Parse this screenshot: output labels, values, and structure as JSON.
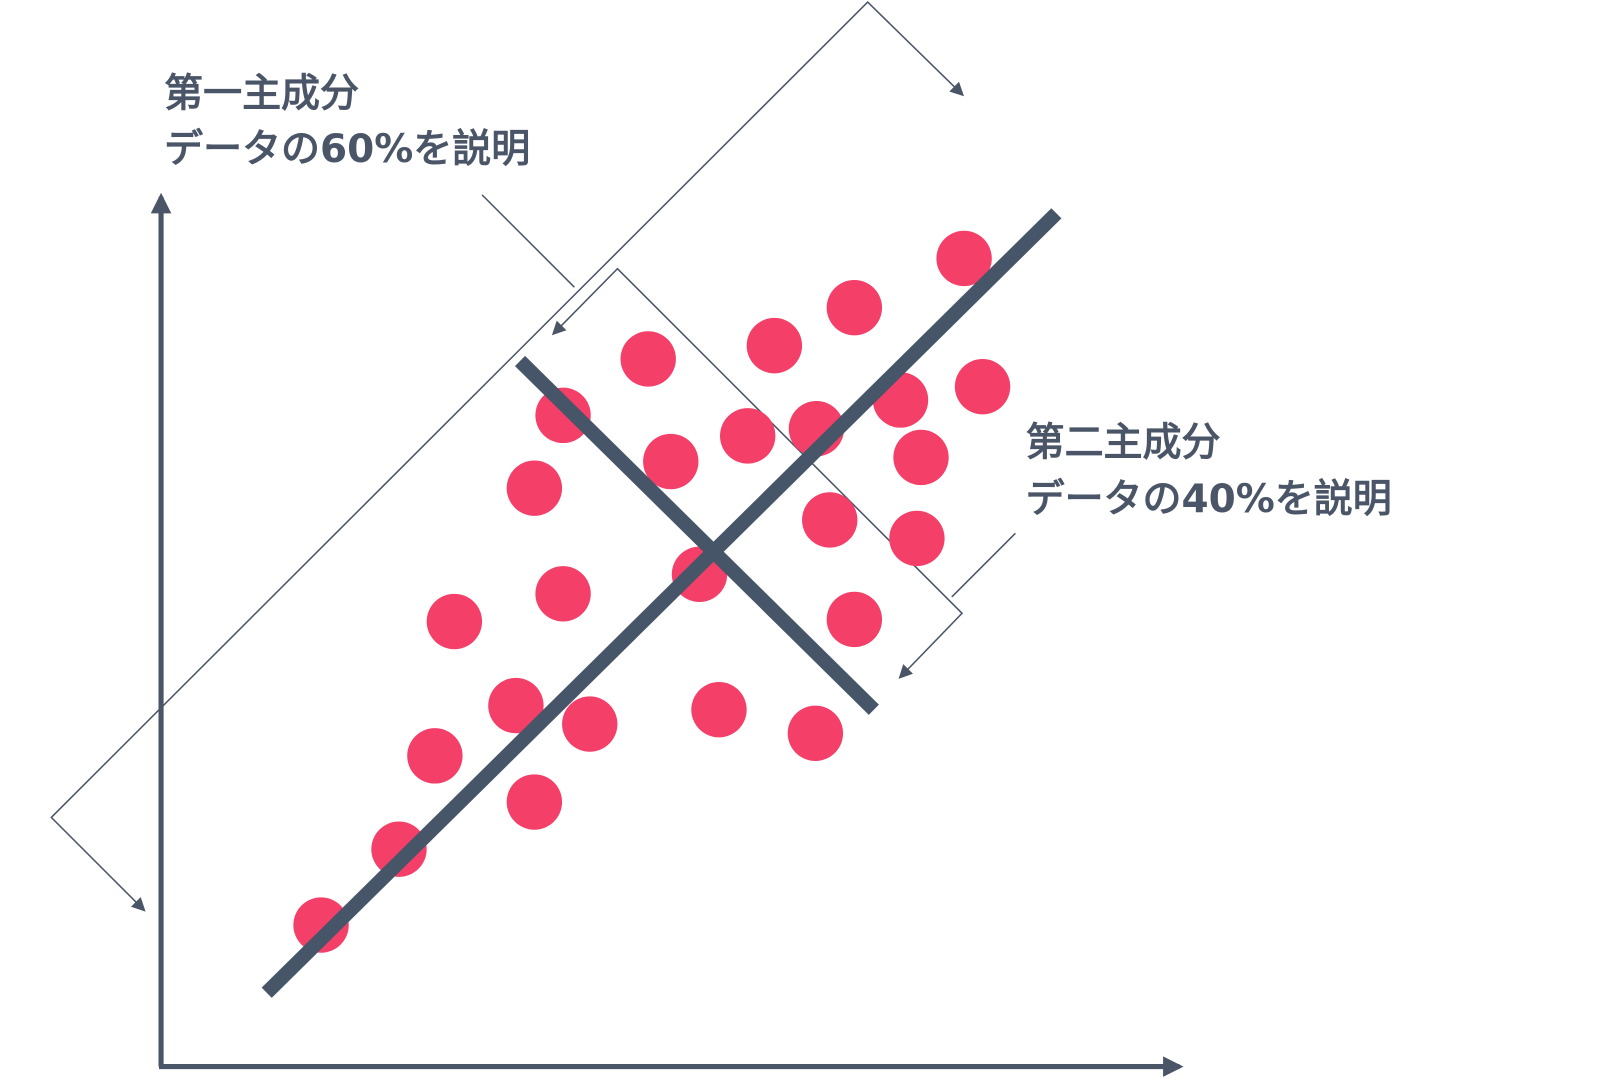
{
  "labels": {
    "pc1": {
      "title": "第一主成分",
      "description": "データの60%を説明"
    },
    "pc2": {
      "title": "第二主成分",
      "description": "データの40%を説明"
    }
  }
}
